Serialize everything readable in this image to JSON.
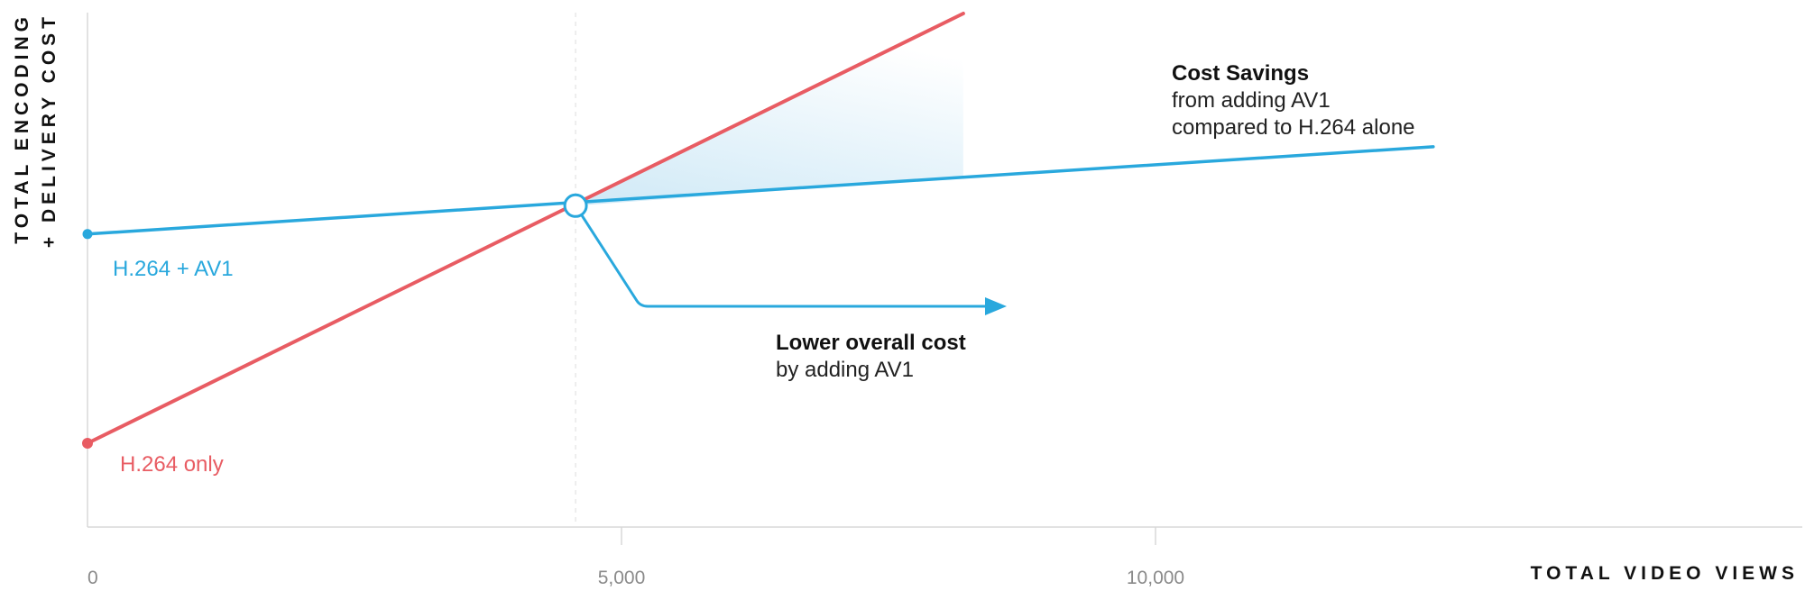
{
  "chart_data": {
    "type": "line",
    "xlabel": "TOTAL VIDEO VIEWS",
    "ylabel_lines": [
      "TOTAL ENCODING",
      "+ DELIVERY COST"
    ],
    "xlim": [
      0,
      12600
    ],
    "x_ticks": [
      {
        "value": 0,
        "label": "0"
      },
      {
        "value": 5000,
        "label": "5,000"
      },
      {
        "value": 10000,
        "label": "10,000"
      }
    ],
    "y_ticks_shown": false,
    "grid": false,
    "series": [
      {
        "name": "H.264 + AV1",
        "color": "#29a8dd",
        "x": [
          0,
          12600
        ],
        "y": [
          0.573,
          0.742
        ]
      },
      {
        "name": "H.264 only",
        "color": "#e85c63",
        "x": [
          0,
          8200
        ],
        "y": [
          0.168,
          1.0
        ]
      }
    ],
    "crossover": {
      "x": 4570,
      "y": 0.628
    },
    "annotations": [
      {
        "id": "savings",
        "title": "Cost Savings",
        "lines": [
          "from adding AV1",
          "compared to H.264 alone"
        ]
      },
      {
        "id": "lower",
        "title": "Lower overall cost",
        "lines": [
          "by adding AV1"
        ]
      }
    ],
    "colors": {
      "axis": "#d8d8d8",
      "guide": "#e2e2e2",
      "fill": "#d6ecf8"
    }
  }
}
